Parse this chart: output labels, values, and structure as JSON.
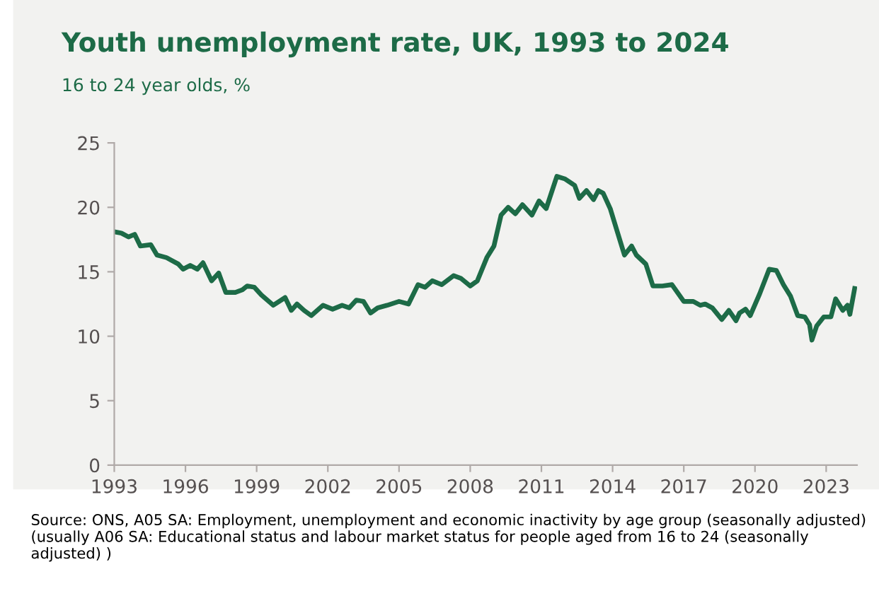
{
  "chart_data": {
    "type": "line",
    "title": "Youth unemployment rate, UK, 1993 to 2024",
    "subtitle": "16 to 24 year olds, %",
    "annotations": [
      "Source: ONS, A05 SA: Employment, unemployment and economic inactivity by age group (seasonally adjusted) (usually A06 SA: Educational status and labour market status for people aged from 16 to 24 (seasonally adjusted) )"
    ],
    "x": [
      1993.0,
      1993.3,
      1993.6,
      1993.86,
      1994.1,
      1994.54,
      1994.8,
      1995.2,
      1995.7,
      1995.9,
      1996.2,
      1996.5,
      1996.74,
      1997.1,
      1997.4,
      1997.7,
      1998.1,
      1998.4,
      1998.6,
      1998.9,
      1999.2,
      1999.7,
      2000.2,
      2000.46,
      2000.7,
      2001.0,
      2001.3,
      2001.8,
      2002.2,
      2002.6,
      2002.9,
      2003.2,
      2003.5,
      2003.8,
      2004.1,
      2004.5,
      2005.0,
      2005.4,
      2005.8,
      2006.1,
      2006.4,
      2006.8,
      2007.3,
      2007.6,
      2008.0,
      2008.3,
      2008.7,
      2009.0,
      2009.3,
      2009.6,
      2009.9,
      2010.2,
      2010.6,
      2010.9,
      2011.2,
      2011.65,
      2012.0,
      2012.4,
      2012.6,
      2012.9,
      2013.2,
      2013.4,
      2013.6,
      2013.9,
      2014.2,
      2014.5,
      2014.8,
      2015.0,
      2015.4,
      2015.7,
      2016.1,
      2016.5,
      2017.0,
      2017.4,
      2017.7,
      2017.9,
      2018.2,
      2018.6,
      2018.9,
      2019.2,
      2019.35,
      2019.6,
      2019.8,
      2020.2,
      2020.6,
      2020.9,
      2021.2,
      2021.5,
      2021.8,
      2022.1,
      2022.3,
      2022.4,
      2022.6,
      2022.9,
      2023.2,
      2023.4,
      2023.7,
      2023.9,
      2024.0,
      2024.2
    ],
    "series": [
      {
        "color": "#1d6b47",
        "values": [
          18.1,
          18.0,
          17.7,
          17.9,
          17.0,
          17.1,
          16.3,
          16.1,
          15.6,
          15.2,
          15.5,
          15.2,
          15.7,
          14.3,
          14.9,
          13.4,
          13.4,
          13.6,
          13.9,
          13.8,
          13.2,
          12.4,
          13.0,
          12.0,
          12.5,
          12.0,
          11.6,
          12.4,
          12.1,
          12.4,
          12.2,
          12.8,
          12.7,
          11.8,
          12.2,
          12.4,
          12.7,
          12.5,
          14.0,
          13.8,
          14.3,
          14.0,
          14.7,
          14.5,
          13.9,
          14.3,
          16.1,
          17.0,
          19.4,
          20.0,
          19.5,
          20.2,
          19.4,
          20.5,
          19.9,
          22.4,
          22.2,
          21.7,
          20.7,
          21.3,
          20.6,
          21.3,
          21.1,
          19.9,
          18.1,
          16.3,
          17.0,
          16.3,
          15.6,
          13.9,
          13.9,
          14.0,
          12.7,
          12.7,
          12.4,
          12.5,
          12.2,
          11.3,
          12.0,
          11.2,
          11.8,
          12.1,
          11.6,
          13.3,
          15.2,
          15.1,
          14.0,
          13.1,
          11.6,
          11.5,
          10.9,
          9.7,
          10.8,
          11.5,
          11.5,
          12.9,
          12.0,
          12.4,
          11.7,
          13.7
        ]
      }
    ],
    "xlim": [
      1993,
      2024.3
    ],
    "xticks": [
      1993,
      1996,
      1999,
      2002,
      2005,
      2008,
      2011,
      2014,
      2017,
      2020,
      2023
    ],
    "ylim": [
      0,
      25
    ],
    "yticks": [
      0,
      5,
      10,
      15,
      20,
      25
    ],
    "grid": false,
    "marker": "none",
    "line_style": "solid"
  }
}
